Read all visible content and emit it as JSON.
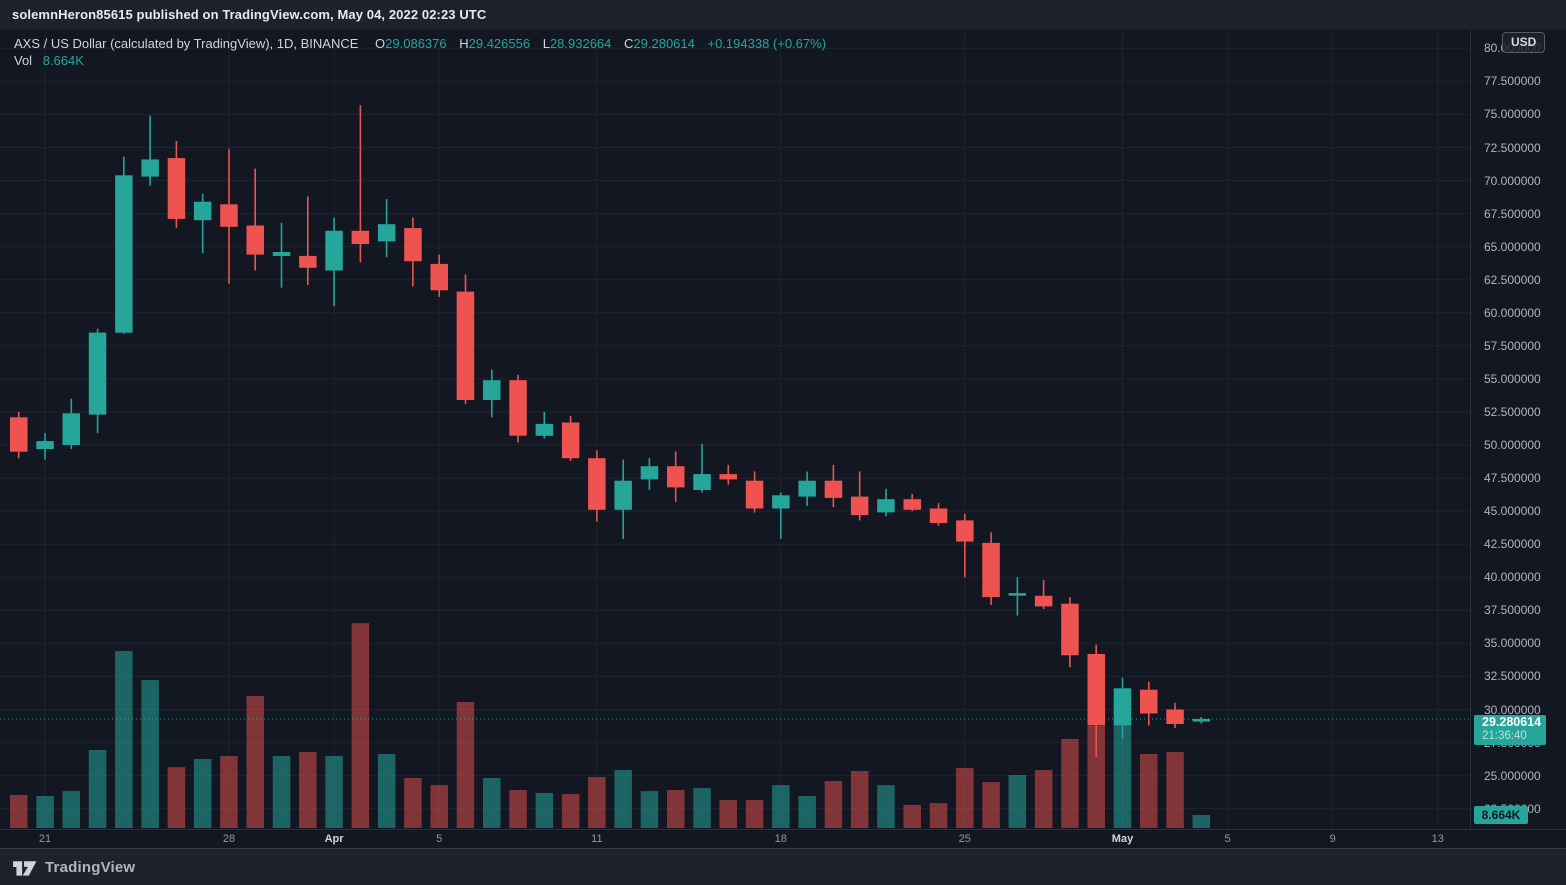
{
  "header": {
    "title": "solemnHeron85615 published on TradingView.com, May 04, 2022 02:23 UTC"
  },
  "legend": {
    "symbol": "AXS / US Dollar (calculated by TradingView), 1D, BINANCE",
    "open_label": "O",
    "open": "29.086376",
    "high_label": "H",
    "high": "29.426556",
    "low_label": "L",
    "low": "28.932664",
    "close_label": "C",
    "close": "29.280614",
    "change": "+0.194338 (+0.67%)",
    "vol_label": "Vol",
    "vol_value": "8.664K"
  },
  "price_scale": {
    "currency": "USD",
    "ticks": [
      "80.000000",
      "77.500000",
      "75.000000",
      "72.500000",
      "70.000000",
      "67.500000",
      "65.000000",
      "62.500000",
      "60.000000",
      "57.500000",
      "55.000000",
      "52.500000",
      "50.000000",
      "47.500000",
      "45.000000",
      "42.500000",
      "40.000000",
      "37.500000",
      "35.000000",
      "32.500000",
      "30.000000",
      "27.500000",
      "25.000000",
      "22.500000"
    ],
    "last_price_label": "29.280614",
    "countdown": "21:36:40",
    "volume_badge": "8.664K"
  },
  "time_scale": {
    "ticks": [
      {
        "label": "21",
        "slot": 1,
        "em": false
      },
      {
        "label": "28",
        "slot": 8,
        "em": false
      },
      {
        "label": "Apr",
        "slot": 12,
        "em": true
      },
      {
        "label": "5",
        "slot": 16,
        "em": false
      },
      {
        "label": "11",
        "slot": 22,
        "em": false
      },
      {
        "label": "18",
        "slot": 29,
        "em": false
      },
      {
        "label": "25",
        "slot": 36,
        "em": false
      },
      {
        "label": "May",
        "slot": 42,
        "em": true
      },
      {
        "label": "5",
        "slot": 46,
        "em": false
      },
      {
        "label": "9",
        "slot": 50,
        "em": false
      },
      {
        "label": "13",
        "slot": 54,
        "em": false
      }
    ]
  },
  "footer": {
    "brand": "TradingView"
  },
  "colors": {
    "up": "#26a69a",
    "down": "#ef5350",
    "bg": "#131722",
    "panel": "#1e222d",
    "grid": "#1e2331",
    "border": "#2a2e39",
    "axis_text": "#b2b5be",
    "text": "#d1d4dc",
    "vol_up": "rgba(38,166,154,0.55)",
    "vol_down": "rgba(239,83,80,0.5)"
  },
  "chart_data": {
    "type": "candlestick",
    "title": "AXS / US Dollar",
    "interval": "1D",
    "exchange": "BINANCE",
    "price_axis": {
      "tick_step": 2.5,
      "visible_range": [
        20.9,
        81.4
      ],
      "decimals": 6,
      "unit": "USD"
    },
    "volume_unit": "K",
    "last_price": 29.280614,
    "candles": [
      {
        "t": "Mar 20",
        "o": 52.1,
        "h": 52.5,
        "l": 49.0,
        "c": 49.5,
        "v": 22.0
      },
      {
        "t": "Mar 21",
        "o": 49.7,
        "h": 50.9,
        "l": 48.9,
        "c": 50.3,
        "v": 21.3
      },
      {
        "t": "Mar 22",
        "o": 50.0,
        "h": 53.5,
        "l": 49.7,
        "c": 52.4,
        "v": 24.6
      },
      {
        "t": "Mar 23",
        "o": 52.3,
        "h": 58.8,
        "l": 50.9,
        "c": 58.5,
        "v": 52.0
      },
      {
        "t": "Mar 24",
        "o": 58.5,
        "h": 71.8,
        "l": 58.4,
        "c": 70.4,
        "v": 118.0
      },
      {
        "t": "Mar 25",
        "o": 70.3,
        "h": 74.9,
        "l": 69.6,
        "c": 71.6,
        "v": 98.6
      },
      {
        "t": "Mar 26",
        "o": 71.7,
        "h": 73.0,
        "l": 66.4,
        "c": 67.1,
        "v": 40.6
      },
      {
        "t": "Mar 27",
        "o": 67.0,
        "h": 69.0,
        "l": 64.5,
        "c": 68.4,
        "v": 46.0
      },
      {
        "t": "Mar 28",
        "o": 68.2,
        "h": 72.4,
        "l": 62.2,
        "c": 66.5,
        "v": 48.0
      },
      {
        "t": "Mar 29",
        "o": 66.6,
        "h": 70.9,
        "l": 63.2,
        "c": 64.4,
        "v": 88.0
      },
      {
        "t": "Mar 30",
        "o": 64.3,
        "h": 66.8,
        "l": 61.9,
        "c": 64.6,
        "v": 48.0
      },
      {
        "t": "Mar 31",
        "o": 64.3,
        "h": 68.8,
        "l": 62.1,
        "c": 63.4,
        "v": 50.6
      },
      {
        "t": "Apr 1",
        "o": 63.2,
        "h": 67.2,
        "l": 60.5,
        "c": 66.2,
        "v": 48.0
      },
      {
        "t": "Apr 2",
        "o": 66.2,
        "h": 75.7,
        "l": 63.8,
        "c": 65.2,
        "v": 136.6
      },
      {
        "t": "Apr 3",
        "o": 65.4,
        "h": 68.6,
        "l": 64.2,
        "c": 66.7,
        "v": 49.3
      },
      {
        "t": "Apr 4",
        "o": 66.4,
        "h": 67.2,
        "l": 62.0,
        "c": 63.9,
        "v": 33.3
      },
      {
        "t": "Apr 5",
        "o": 63.7,
        "h": 64.4,
        "l": 61.2,
        "c": 61.7,
        "v": 28.6
      },
      {
        "t": "Apr 6",
        "o": 61.6,
        "h": 62.9,
        "l": 53.1,
        "c": 53.4,
        "v": 84.0
      },
      {
        "t": "Apr 7",
        "o": 53.4,
        "h": 55.7,
        "l": 52.1,
        "c": 54.9,
        "v": 33.3
      },
      {
        "t": "Apr 8",
        "o": 54.9,
        "h": 55.3,
        "l": 50.2,
        "c": 50.7,
        "v": 25.3
      },
      {
        "t": "Apr 9",
        "o": 50.7,
        "h": 52.5,
        "l": 50.5,
        "c": 51.6,
        "v": 23.3
      },
      {
        "t": "Apr 10",
        "o": 51.7,
        "h": 52.2,
        "l": 48.8,
        "c": 49.0,
        "v": 22.6
      },
      {
        "t": "Apr 11",
        "o": 49.0,
        "h": 49.6,
        "l": 44.2,
        "c": 45.1,
        "v": 34.0
      },
      {
        "t": "Apr 12",
        "o": 45.1,
        "h": 48.9,
        "l": 42.9,
        "c": 47.3,
        "v": 38.6
      },
      {
        "t": "Apr 13",
        "o": 47.4,
        "h": 49.0,
        "l": 46.6,
        "c": 48.4,
        "v": 24.6
      },
      {
        "t": "Apr 14",
        "o": 48.4,
        "h": 49.5,
        "l": 45.7,
        "c": 46.8,
        "v": 25.3
      },
      {
        "t": "Apr 15",
        "o": 46.6,
        "h": 50.1,
        "l": 46.4,
        "c": 47.8,
        "v": 26.6
      },
      {
        "t": "Apr 16",
        "o": 47.8,
        "h": 48.5,
        "l": 47.0,
        "c": 47.4,
        "v": 18.6
      },
      {
        "t": "Apr 17",
        "o": 47.3,
        "h": 48.0,
        "l": 44.9,
        "c": 45.2,
        "v": 18.6
      },
      {
        "t": "Apr 18",
        "o": 45.2,
        "h": 46.4,
        "l": 42.9,
        "c": 46.2,
        "v": 28.6
      },
      {
        "t": "Apr 19",
        "o": 46.1,
        "h": 48.0,
        "l": 45.4,
        "c": 47.3,
        "v": 21.3
      },
      {
        "t": "Apr 20",
        "o": 47.3,
        "h": 48.5,
        "l": 45.3,
        "c": 46.0,
        "v": 31.3
      },
      {
        "t": "Apr 21",
        "o": 46.1,
        "h": 48.0,
        "l": 44.3,
        "c": 44.7,
        "v": 38.0
      },
      {
        "t": "Apr 22",
        "o": 44.9,
        "h": 46.7,
        "l": 44.6,
        "c": 45.9,
        "v": 28.6
      },
      {
        "t": "Apr 23",
        "o": 45.9,
        "h": 46.3,
        "l": 45.0,
        "c": 45.1,
        "v": 15.3
      },
      {
        "t": "Apr 24",
        "o": 45.2,
        "h": 45.6,
        "l": 43.9,
        "c": 44.1,
        "v": 16.6
      },
      {
        "t": "Apr 25",
        "o": 44.3,
        "h": 44.8,
        "l": 40.0,
        "c": 42.7,
        "v": 40.0
      },
      {
        "t": "Apr 26",
        "o": 42.6,
        "h": 43.4,
        "l": 37.9,
        "c": 38.5,
        "v": 30.6
      },
      {
        "t": "Apr 27",
        "o": 38.6,
        "h": 40.0,
        "l": 37.1,
        "c": 38.8,
        "v": 35.3
      },
      {
        "t": "Apr 28",
        "o": 38.6,
        "h": 39.8,
        "l": 37.6,
        "c": 37.8,
        "v": 38.6
      },
      {
        "t": "Apr 29",
        "o": 38.0,
        "h": 38.5,
        "l": 33.2,
        "c": 34.1,
        "v": 59.3
      },
      {
        "t": "Apr 30",
        "o": 34.2,
        "h": 34.9,
        "l": 26.4,
        "c": 28.8,
        "v": 68.0
      },
      {
        "t": "May 1",
        "o": 28.8,
        "h": 32.4,
        "l": 27.8,
        "c": 31.6,
        "v": 70.6
      },
      {
        "t": "May 2",
        "o": 31.5,
        "h": 32.1,
        "l": 28.8,
        "c": 29.7,
        "v": 49.3
      },
      {
        "t": "May 3",
        "o": 30.0,
        "h": 30.5,
        "l": 28.6,
        "c": 28.9,
        "v": 50.6
      },
      {
        "t": "May 4",
        "o": 29.086376,
        "h": 29.426556,
        "l": 28.932664,
        "c": 29.280614,
        "v": 8.664
      }
    ]
  }
}
